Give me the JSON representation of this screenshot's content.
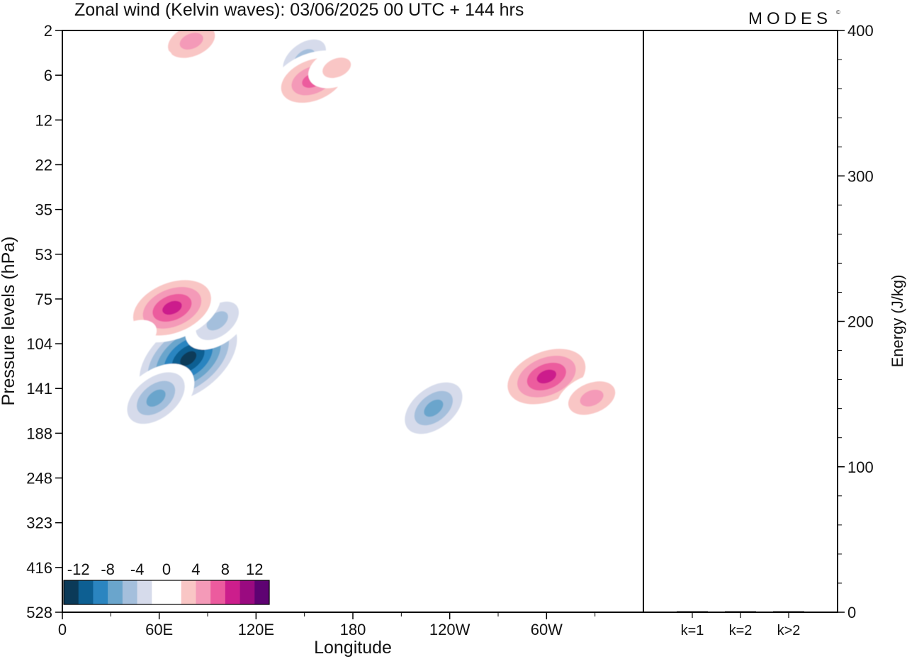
{
  "chart_data": [
    {
      "type": "heatmap",
      "title": "Zonal wind (Kelvin waves):  03/06/2025  00 UTC  + 144 hrs",
      "brand": "MODES",
      "brand_mark": "©",
      "xlabel": "Longitude",
      "ylabel": "Pressure levels (hPa)",
      "x_ticks": [
        "0",
        "60E",
        "120E",
        "180",
        "120W",
        "60W"
      ],
      "x_tick_values": [
        0,
        60,
        120,
        180,
        240,
        300
      ],
      "xlim": [
        0,
        360
      ],
      "y_ticks": [
        "2",
        "6",
        "12",
        "22",
        "35",
        "53",
        "75",
        "104",
        "141",
        "188",
        "248",
        "323",
        "416",
        "528"
      ],
      "y_scale": "log",
      "ylim": [
        528,
        2
      ],
      "colorbar": {
        "labels": [
          "-12",
          "-8",
          "-4",
          "0",
          "4",
          "8",
          "12"
        ],
        "label_values": [
          -12,
          -8,
          -4,
          0,
          4,
          8,
          12
        ],
        "levels": [
          -14,
          -12,
          -10,
          -8,
          -6,
          -4,
          -2,
          0,
          2,
          4,
          6,
          8,
          10,
          12,
          14
        ],
        "colors": [
          "#0b3a58",
          "#0d5f92",
          "#2b85c0",
          "#6aa5cc",
          "#a4bfdc",
          "#d6dbeb",
          "#ffffff",
          "#ffffff",
          "#f9c6c5",
          "#f49ab8",
          "#ec5b9e",
          "#cc1e8c",
          "#9a0a80",
          "#5e0272"
        ]
      },
      "features": [
        {
          "lon": 78,
          "p": 115,
          "value": -14
        },
        {
          "lon": 96,
          "p": 88,
          "value": -6
        },
        {
          "lon": 58,
          "p": 150,
          "value": -8
        },
        {
          "lon": 40,
          "p": 62,
          "value": -2
        },
        {
          "lon": 120,
          "p": 50,
          "value": -2
        },
        {
          "lon": 120,
          "p": 24,
          "value": -2
        },
        {
          "lon": 68,
          "p": 195,
          "value": -2
        },
        {
          "lon": 230,
          "p": 160,
          "value": -8
        },
        {
          "lon": 240,
          "p": 210,
          "value": -2
        },
        {
          "lon": 235,
          "p": 330,
          "value": -2
        },
        {
          "lon": 230,
          "p": 8,
          "value": -2
        },
        {
          "lon": 150,
          "p": 4,
          "value": -6
        },
        {
          "lon": 68,
          "p": 80,
          "value": 10
        },
        {
          "lon": 45,
          "p": 98,
          "value": 2
        },
        {
          "lon": 155,
          "p": 6.5,
          "value": 8
        },
        {
          "lon": 170,
          "p": 5,
          "value": 4
        },
        {
          "lon": 80,
          "p": 2.6,
          "value": 6
        },
        {
          "lon": 300,
          "p": 130,
          "value": 10
        },
        {
          "lon": 328,
          "p": 150,
          "value": 6
        },
        {
          "lon": 290,
          "p": 190,
          "value": 2
        },
        {
          "lon": 175,
          "p": 95,
          "value": 2
        },
        {
          "lon": 210,
          "p": 75,
          "value": 2
        },
        {
          "lon": 165,
          "p": 150,
          "value": 2
        },
        {
          "lon": 210,
          "p": 330,
          "value": 2
        },
        {
          "lon": 280,
          "p": 45,
          "value": 2
        },
        {
          "lon": 290,
          "p": 30,
          "value": 2
        },
        {
          "lon": 345,
          "p": 19,
          "value": 2
        },
        {
          "lon": 300,
          "p": 2.2,
          "value": 2
        },
        {
          "lon": 55,
          "p": 4.5,
          "value": 2
        }
      ]
    },
    {
      "type": "bar",
      "ylabel": "Energy (J/kg)",
      "categories": [
        "k=1",
        "k=2",
        "k>2"
      ],
      "values": [
        0.5,
        0.5,
        0.5
      ],
      "ylim": [
        0,
        400
      ],
      "y_ticks": [
        "0",
        "100",
        "200",
        "300",
        "400"
      ],
      "y_tick_values": [
        0,
        100,
        200,
        300,
        400
      ],
      "y_minor_step": 20,
      "bar_color": "#111111"
    }
  ]
}
